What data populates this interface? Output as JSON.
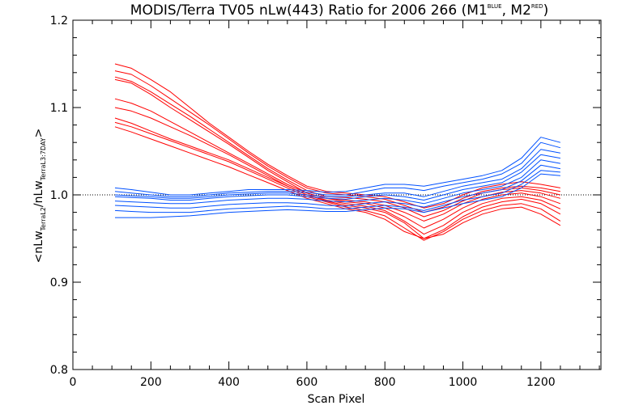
{
  "chart_data": {
    "type": "line",
    "title": {
      "main": "MODIS/Terra TV05 nLw(443) Ratio for 2006 266 (M1",
      "sup1": "BLUE",
      "mid": ", M2",
      "sup2": "RED",
      "end": ")"
    },
    "xlabel": "Scan Pixel",
    "ylabel": {
      "open": "<nLw",
      "sub1": "TerraL2",
      "mid": "/nLw",
      "sub2": "TerraL3:7DAY",
      "close": ">"
    },
    "xlim": [
      0,
      1354
    ],
    "ylim": [
      0.8,
      1.2
    ],
    "xticks": [
      0,
      200,
      400,
      600,
      800,
      1000,
      1200
    ],
    "yticks": [
      0.8,
      0.9,
      1.0,
      1.1,
      1.2
    ],
    "xtick_labels": [
      "0",
      "200",
      "400",
      "600",
      "800",
      "1000",
      "1200"
    ],
    "ytick_labels": [
      "0.8",
      "0.9",
      "1.0",
      "1.1",
      "1.2"
    ],
    "reference_line": 1.0,
    "x": [
      108,
      150,
      200,
      250,
      300,
      350,
      400,
      450,
      500,
      550,
      600,
      650,
      700,
      750,
      800,
      850,
      900,
      950,
      1000,
      1050,
      1100,
      1150,
      1200,
      1250
    ],
    "series": [
      {
        "color": "#ff0000",
        "values": [
          1.15,
          1.145,
          1.132,
          1.118,
          1.1,
          1.082,
          1.066,
          1.05,
          1.035,
          1.022,
          1.01,
          1.004,
          1.002,
          1.0,
          0.998,
          0.992,
          0.985,
          0.99,
          1.0,
          1.008,
          1.012,
          1.015,
          1.012,
          1.008
        ]
      },
      {
        "color": "#ff0000",
        "values": [
          1.142,
          1.138,
          1.125,
          1.11,
          1.095,
          1.08,
          1.064,
          1.048,
          1.033,
          1.02,
          1.008,
          1.002,
          1.0,
          0.998,
          0.995,
          0.988,
          0.98,
          0.986,
          0.996,
          1.004,
          1.008,
          1.01,
          1.008,
          1.004
        ]
      },
      {
        "color": "#ff0000",
        "values": [
          1.135,
          1.13,
          1.118,
          1.104,
          1.09,
          1.075,
          1.06,
          1.045,
          1.03,
          1.017,
          1.005,
          0.998,
          0.997,
          0.995,
          0.992,
          0.985,
          0.975,
          0.982,
          0.993,
          1.002,
          1.006,
          1.008,
          1.005,
          1.0
        ]
      },
      {
        "color": "#ff0000",
        "values": [
          1.132,
          1.128,
          1.115,
          1.1,
          1.086,
          1.072,
          1.058,
          1.043,
          1.028,
          1.015,
          1.002,
          0.996,
          0.994,
          0.992,
          0.988,
          0.98,
          0.97,
          0.978,
          0.99,
          0.998,
          1.003,
          1.005,
          1.002,
          0.996
        ]
      },
      {
        "color": "#ff0000",
        "values": [
          1.11,
          1.105,
          1.096,
          1.084,
          1.072,
          1.06,
          1.048,
          1.036,
          1.024,
          1.012,
          1.002,
          0.996,
          0.992,
          0.99,
          0.985,
          0.975,
          0.962,
          0.972,
          0.985,
          0.995,
          1.0,
          1.002,
          0.998,
          0.99
        ]
      },
      {
        "color": "#ff0000",
        "values": [
          1.1,
          1.096,
          1.088,
          1.078,
          1.068,
          1.057,
          1.046,
          1.034,
          1.022,
          1.01,
          1.0,
          0.994,
          0.99,
          0.987,
          0.982,
          0.97,
          0.955,
          0.965,
          0.98,
          0.99,
          0.996,
          0.998,
          0.994,
          0.984
        ]
      },
      {
        "color": "#ff0000",
        "values": [
          1.088,
          1.082,
          1.073,
          1.064,
          1.056,
          1.048,
          1.04,
          1.03,
          1.02,
          1.01,
          1.0,
          0.993,
          0.988,
          0.985,
          0.98,
          0.968,
          0.95,
          0.96,
          0.975,
          0.986,
          0.992,
          0.995,
          0.99,
          0.978
        ]
      },
      {
        "color": "#ff0000",
        "values": [
          1.083,
          1.078,
          1.07,
          1.062,
          1.054,
          1.046,
          1.038,
          1.028,
          1.018,
          1.008,
          0.998,
          0.992,
          0.986,
          0.982,
          0.976,
          0.962,
          0.948,
          0.958,
          0.972,
          0.982,
          0.988,
          0.99,
          0.984,
          0.97
        ]
      },
      {
        "color": "#ff0000",
        "values": [
          1.078,
          1.072,
          1.064,
          1.056,
          1.048,
          1.04,
          1.032,
          1.023,
          1.014,
          1.005,
          0.996,
          0.99,
          0.984,
          0.98,
          0.972,
          0.958,
          0.95,
          0.955,
          0.968,
          0.978,
          0.984,
          0.986,
          0.978,
          0.965
        ]
      },
      {
        "color": "#0050ff",
        "values": [
          1.008,
          1.006,
          1.003,
          1.0,
          1.0,
          1.002,
          1.004,
          1.006,
          1.006,
          1.006,
          1.005,
          1.003,
          1.004,
          1.008,
          1.012,
          1.012,
          1.01,
          1.014,
          1.018,
          1.022,
          1.028,
          1.042,
          1.066,
          1.06
        ]
      },
      {
        "color": "#0050ff",
        "values": [
          1.004,
          1.002,
          1.0,
          0.998,
          0.998,
          1.0,
          1.002,
          1.003,
          1.004,
          1.004,
          1.003,
          1.0,
          1.0,
          1.004,
          1.008,
          1.008,
          1.005,
          1.01,
          1.014,
          1.018,
          1.024,
          1.036,
          1.06,
          1.054
        ]
      },
      {
        "color": "#0050ff",
        "values": [
          1.0,
          0.999,
          0.998,
          0.996,
          0.996,
          0.998,
          1.0,
          1.001,
          1.002,
          1.002,
          1.0,
          0.998,
          0.998,
          1.0,
          1.002,
          1.002,
          0.998,
          1.004,
          1.01,
          1.014,
          1.018,
          1.03,
          1.052,
          1.048
        ]
      },
      {
        "color": "#0050ff",
        "values": [
          0.998,
          0.997,
          0.996,
          0.994,
          0.994,
          0.996,
          0.998,
          0.999,
          1.0,
          1.0,
          0.998,
          0.996,
          0.995,
          0.998,
          1.0,
          0.998,
          0.994,
          1.0,
          1.006,
          1.01,
          1.014,
          1.026,
          1.046,
          1.042
        ]
      },
      {
        "color": "#0050ff",
        "values": [
          0.993,
          0.992,
          0.991,
          0.99,
          0.99,
          0.992,
          0.994,
          0.995,
          0.996,
          0.996,
          0.995,
          0.993,
          0.992,
          0.994,
          0.996,
          0.994,
          0.99,
          0.996,
          1.002,
          1.006,
          1.01,
          1.02,
          1.04,
          1.036
        ]
      },
      {
        "color": "#0050ff",
        "values": [
          0.988,
          0.987,
          0.986,
          0.985,
          0.985,
          0.987,
          0.989,
          0.99,
          0.991,
          0.991,
          0.99,
          0.988,
          0.987,
          0.99,
          0.992,
          0.99,
          0.986,
          0.992,
          0.998,
          1.002,
          1.006,
          1.016,
          1.034,
          1.03
        ]
      },
      {
        "color": "#0050ff",
        "values": [
          0.982,
          0.981,
          0.98,
          0.98,
          0.98,
          0.982,
          0.984,
          0.985,
          0.986,
          0.987,
          0.986,
          0.984,
          0.984,
          0.986,
          0.988,
          0.986,
          0.982,
          0.988,
          0.994,
          0.998,
          1.002,
          1.012,
          1.028,
          1.026
        ]
      },
      {
        "color": "#0050ff",
        "values": [
          0.974,
          0.974,
          0.974,
          0.975,
          0.976,
          0.978,
          0.98,
          0.981,
          0.982,
          0.983,
          0.982,
          0.981,
          0.981,
          0.983,
          0.985,
          0.984,
          0.98,
          0.985,
          0.99,
          0.994,
          0.998,
          1.008,
          1.024,
          1.022
        ]
      }
    ]
  }
}
